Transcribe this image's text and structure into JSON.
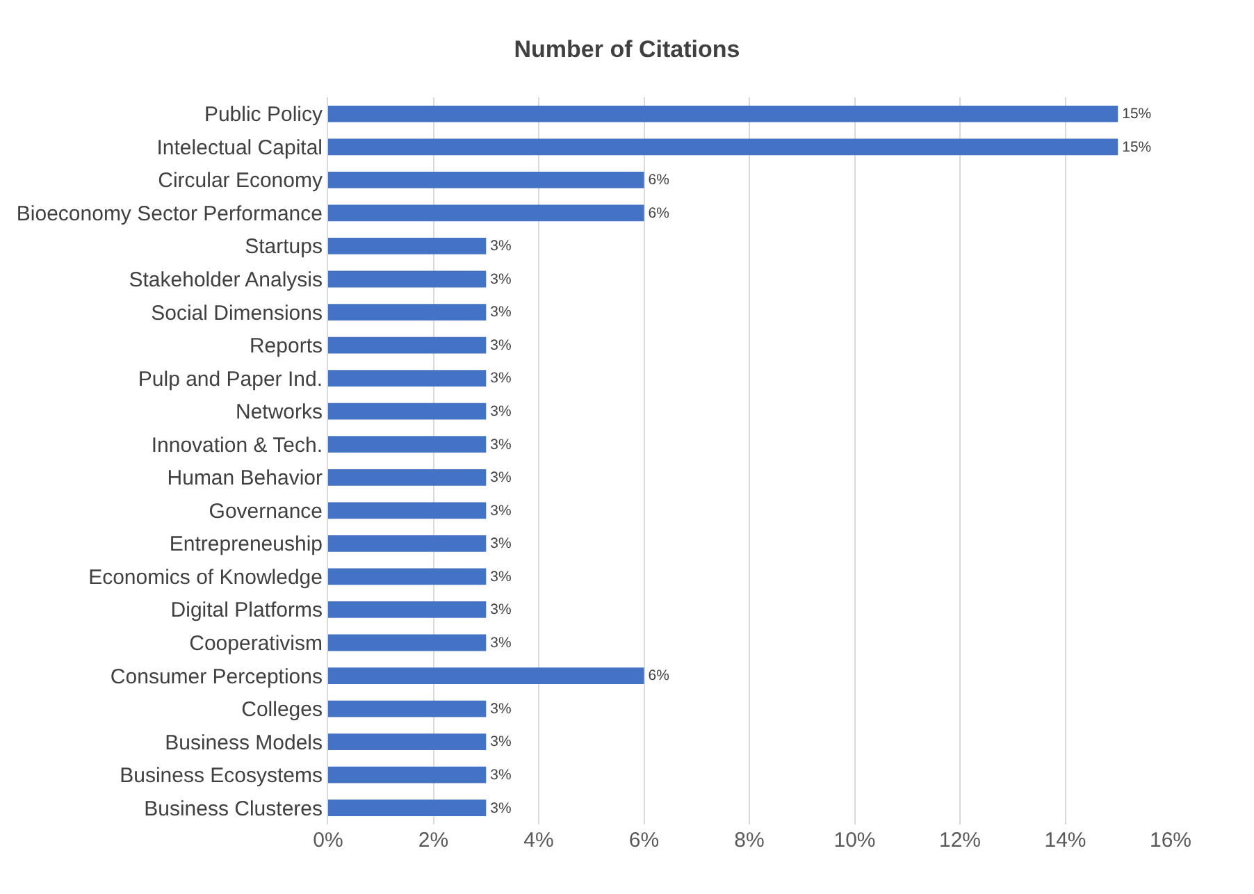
{
  "chart_data": {
    "type": "bar",
    "orientation": "horizontal",
    "title": "Number of Citations",
    "categories": [
      "Public Policy",
      "Intelectual Capital",
      "Circular Economy",
      "Bioeconomy Sector Performance",
      "Startups",
      "Stakeholder Analysis",
      "Social Dimensions",
      "Reports",
      "Pulp and Paper Ind.",
      "Networks",
      "Innovation & Tech.",
      "Human Behavior",
      "Governance",
      "Entrepreneuship",
      "Economics of Knowledge",
      "Digital Platforms",
      "Cooperativism",
      "Consumer Perceptions",
      "Colleges",
      "Business Models",
      "Business Ecosystems",
      "Business Clusteres"
    ],
    "values": [
      15,
      15,
      6,
      6,
      3,
      3,
      3,
      3,
      3,
      3,
      3,
      3,
      3,
      3,
      3,
      3,
      3,
      6,
      3,
      3,
      3,
      3
    ],
    "value_labels": [
      "15%",
      "15%",
      "6%",
      "6%",
      "3%",
      "3%",
      "3%",
      "3%",
      "3%",
      "3%",
      "3%",
      "3%",
      "3%",
      "3%",
      "3%",
      "3%",
      "3%",
      "6%",
      "3%",
      "3%",
      "3%",
      "3%"
    ],
    "color": "#4472c4",
    "xlim": [
      0,
      16
    ],
    "xticks": [
      {
        "value": 0,
        "label": "0%"
      },
      {
        "value": 2,
        "label": "2%"
      },
      {
        "value": 4,
        "label": "4%"
      },
      {
        "value": 6,
        "label": "6%"
      },
      {
        "value": 8,
        "label": "8%"
      },
      {
        "value": 10,
        "label": "10%"
      },
      {
        "value": 12,
        "label": "12%"
      },
      {
        "value": 14,
        "label": "14%"
      },
      {
        "value": 16,
        "label": "16%"
      }
    ],
    "grid": "x"
  }
}
